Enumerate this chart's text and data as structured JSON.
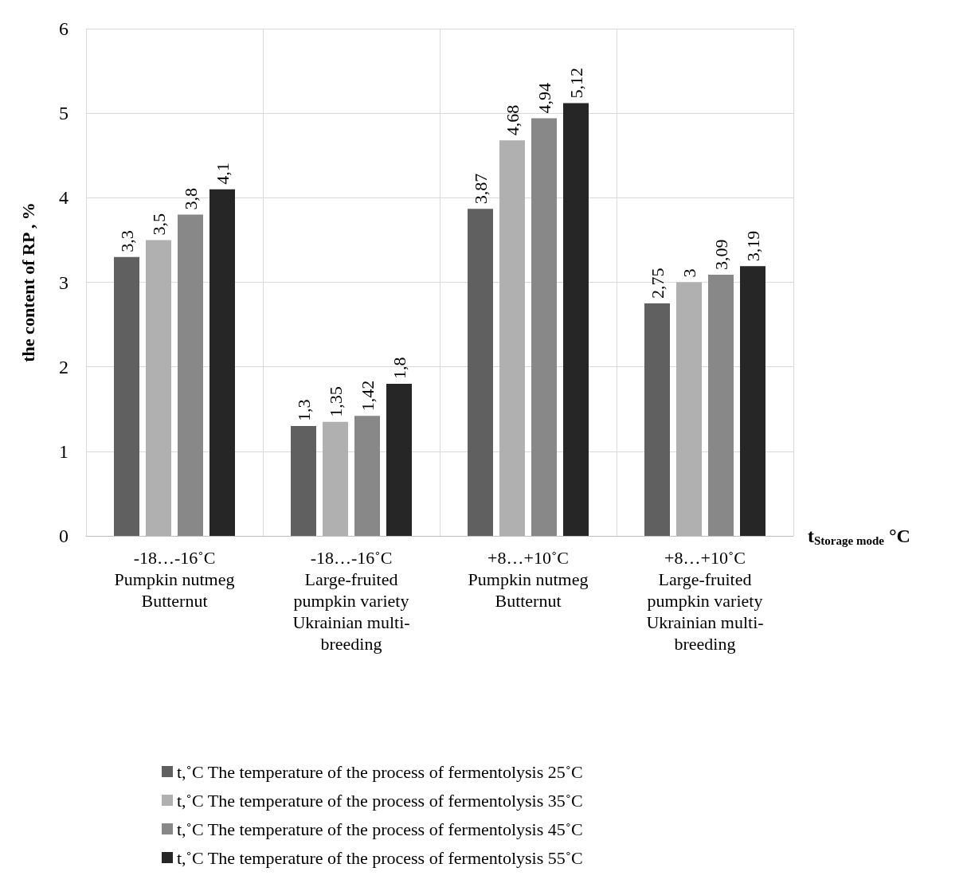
{
  "chart_data": {
    "type": "bar",
    "ylabel": "the content of RP , %",
    "xlabel": "t$_{Storage mode}$ °C",
    "categories": [
      "-18…-16˚C\nPumpkin nutmeg\nButternut",
      "-18…-16˚C\nLarge-fruited\npumpkin variety\nUkrainian multi-\nbreeding",
      "+8…+10˚C\nPumpkin nutmeg\nButternut",
      "+8…+10˚C\nLarge-fruited\npumpkin variety\nUkrainian multi-\nbreeding"
    ],
    "series": [
      {
        "name": "t,˚C The temperature of the process of fermentolysis 25˚C",
        "color": "#606060",
        "values": [
          3.3,
          1.3,
          3.87,
          2.75
        ],
        "value_labels": [
          "3,3",
          "1,3",
          "3,87",
          "2,75"
        ]
      },
      {
        "name": "t,˚C The temperature of the process of fermentolysis 35˚C",
        "color": "#b0b0b0",
        "values": [
          3.5,
          1.35,
          4.68,
          3
        ],
        "value_labels": [
          "3,5",
          "1,35",
          "4,68",
          "3"
        ]
      },
      {
        "name": "t,˚C The temperature of the process of fermentolysis 45˚C",
        "color": "#888888",
        "values": [
          3.8,
          1.42,
          4.94,
          3.09
        ],
        "value_labels": [
          "3,8",
          "1,42",
          "4,94",
          "3,09"
        ]
      },
      {
        "name": "t,˚C The temperature of the process of fermentolysis 55˚C",
        "color": "#262626",
        "values": [
          4.1,
          1.8,
          5.12,
          3.19
        ],
        "value_labels": [
          "4,1",
          "1,8",
          "5,12",
          "3,19"
        ]
      }
    ],
    "ylim": [
      0,
      6
    ],
    "yticks": [
      0,
      1,
      2,
      3,
      4,
      5,
      6
    ],
    "grid": true,
    "legend": "bottom"
  }
}
